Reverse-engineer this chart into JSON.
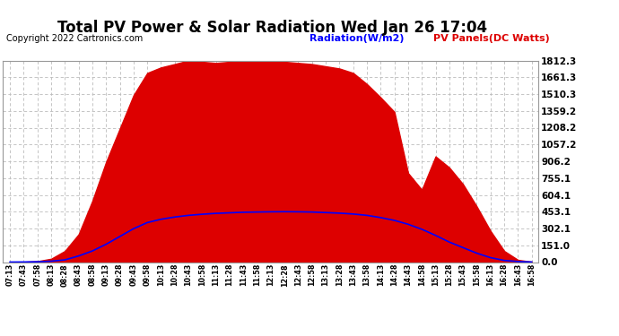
{
  "title": "Total PV Power & Solar Radiation Wed Jan 26 17:04",
  "copyright": "Copyright 2022 Cartronics.com",
  "legend_radiation": "Radiation(W/m2)",
  "legend_pv": "PV Panels(DC Watts)",
  "background_color": "#ffffff",
  "plot_bg_color": "#ffffff",
  "grid_color": "#bbbbbb",
  "pv_color": "#dd0000",
  "radiation_color": "#0000ff",
  "yticks": [
    0.0,
    151.0,
    302.1,
    453.1,
    604.1,
    755.1,
    906.2,
    1057.2,
    1208.2,
    1359.2,
    1510.3,
    1661.3,
    1812.3
  ],
  "ymax": 1812.3,
  "ymin": 0.0,
  "x_labels": [
    "07:13",
    "07:43",
    "07:58",
    "08:13",
    "08:28",
    "08:43",
    "08:58",
    "09:13",
    "09:28",
    "09:43",
    "09:58",
    "10:13",
    "10:28",
    "10:43",
    "10:58",
    "11:13",
    "11:28",
    "11:43",
    "11:58",
    "12:13",
    "12:28",
    "12:43",
    "12:58",
    "13:13",
    "13:28",
    "13:43",
    "13:58",
    "14:13",
    "14:28",
    "14:43",
    "14:58",
    "15:13",
    "15:28",
    "15:43",
    "15:58",
    "16:13",
    "16:28",
    "16:43",
    "16:58"
  ],
  "pv_values": [
    0,
    2,
    8,
    30,
    100,
    250,
    550,
    900,
    1200,
    1500,
    1700,
    1750,
    1780,
    1812,
    1800,
    1790,
    1800,
    1810,
    1812,
    1805,
    1800,
    1790,
    1780,
    1760,
    1740,
    1700,
    1600,
    1480,
    1350,
    800,
    650,
    950,
    850,
    700,
    500,
    280,
    100,
    20,
    3
  ],
  "radiation_values": [
    0,
    1,
    3,
    8,
    20,
    55,
    100,
    160,
    230,
    300,
    355,
    385,
    405,
    420,
    430,
    438,
    443,
    448,
    450,
    452,
    453,
    452,
    450,
    445,
    440,
    432,
    420,
    400,
    375,
    340,
    295,
    240,
    180,
    130,
    80,
    40,
    15,
    5,
    1
  ]
}
